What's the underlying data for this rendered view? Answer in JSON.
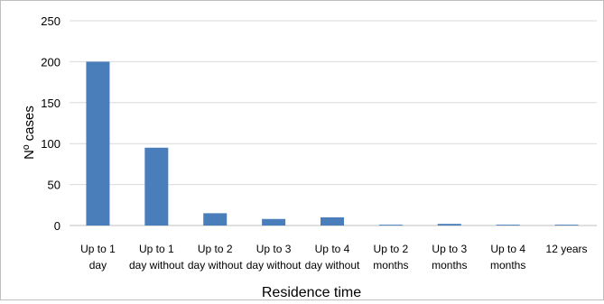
{
  "chart_data": {
    "type": "bar",
    "title": "",
    "xlabel": "Residence time",
    "ylabel": "Nº cases",
    "ylim": [
      0,
      250
    ],
    "yticks": [
      0,
      50,
      100,
      150,
      200,
      250
    ],
    "grid": true,
    "legend": "none",
    "bar_color": "#4a7ebb",
    "grid_color": "#d9d9d9",
    "categories": [
      [
        "Up to 1",
        "day"
      ],
      [
        "Up to 1",
        "day without"
      ],
      [
        "Up to 2",
        "day without"
      ],
      [
        "Up to 3",
        "day without"
      ],
      [
        "Up to 4",
        "day without"
      ],
      [
        "Up to 2",
        "months"
      ],
      [
        "Up to 3",
        "months"
      ],
      [
        "Up to 4",
        "months"
      ],
      [
        "12 years"
      ]
    ],
    "values": [
      200,
      95,
      15,
      8,
      10,
      1,
      2,
      1,
      1
    ]
  }
}
